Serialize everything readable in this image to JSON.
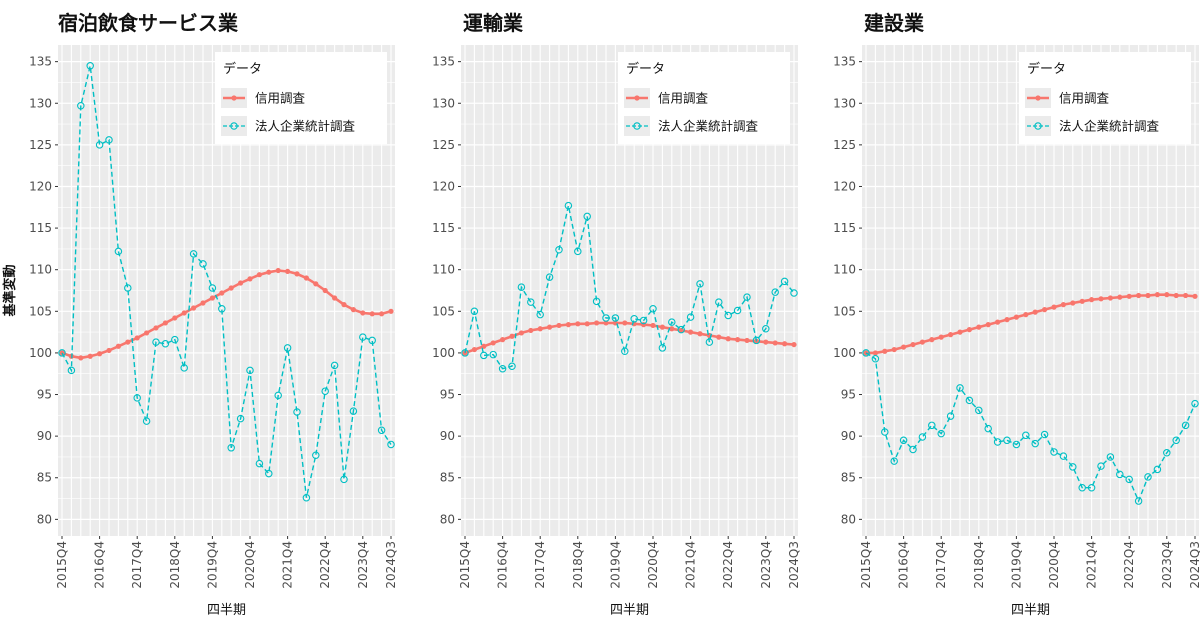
{
  "colors": {
    "credit": "#F8766D",
    "corporate": "#00BFC4",
    "panel_bg": "#EBEBEB",
    "grid": "#FFFFFF"
  },
  "shared": {
    "ylabel": "基準変動",
    "xlabel": "四半期",
    "legend_title": "データ",
    "legend_items": [
      "信用調査",
      "法人企業統計調査"
    ],
    "x_tick_labels": [
      "2015Q4",
      "2016Q4",
      "2017Q4",
      "2018Q4",
      "2019Q4",
      "2020Q4",
      "2021Q4",
      "2022Q4",
      "2023Q4",
      "2024Q3"
    ],
    "y_tick_labels": [
      "80",
      "85",
      "90",
      "95",
      "100",
      "105",
      "110",
      "115",
      "120",
      "125",
      "130",
      "135"
    ]
  },
  "chart_data": [
    {
      "type": "line",
      "title": "宿泊飲食サービス業",
      "xlabel": "四半期",
      "ylabel": "基準変動",
      "legend_title": "データ",
      "legend_position": "top-right",
      "grid": true,
      "ylim": [
        78,
        137
      ],
      "x": [
        "2015Q4",
        "2016Q1",
        "2016Q2",
        "2016Q3",
        "2016Q4",
        "2017Q1",
        "2017Q2",
        "2017Q3",
        "2017Q4",
        "2018Q1",
        "2018Q2",
        "2018Q3",
        "2018Q4",
        "2019Q1",
        "2019Q2",
        "2019Q3",
        "2019Q4",
        "2020Q1",
        "2020Q2",
        "2020Q3",
        "2020Q4",
        "2021Q1",
        "2021Q2",
        "2021Q3",
        "2021Q4",
        "2022Q1",
        "2022Q2",
        "2022Q3",
        "2022Q4",
        "2023Q1",
        "2023Q2",
        "2023Q3",
        "2023Q4",
        "2024Q1",
        "2024Q2",
        "2024Q3"
      ],
      "series": [
        {
          "name": "信用調査",
          "style": "solid-dot",
          "values": [
            100,
            99.6,
            99.4,
            99.6,
            99.9,
            100.3,
            100.8,
            101.3,
            101.8,
            102.4,
            103,
            103.6,
            104.2,
            104.8,
            105.4,
            106,
            106.6,
            107.2,
            107.8,
            108.4,
            108.9,
            109.4,
            109.7,
            109.9,
            109.8,
            109.5,
            109,
            108.3,
            107.5,
            106.6,
            105.8,
            105.2,
            104.8,
            104.7,
            104.7,
            105
          ]
        },
        {
          "name": "法人企業統計調査",
          "style": "dashed-open",
          "values": [
            100,
            97.9,
            129.7,
            134.5,
            125,
            125.6,
            112.2,
            107.8,
            94.6,
            91.8,
            101.3,
            101.1,
            101.6,
            98.2,
            111.9,
            110.7,
            107.8,
            105.3,
            88.6,
            92.1,
            97.9,
            86.7,
            85.5,
            94.9,
            100.6,
            92.9,
            82.6,
            87.7,
            95.4,
            98.5,
            84.8,
            93,
            101.9,
            101.5,
            90.7,
            89
          ]
        }
      ]
    },
    {
      "type": "line",
      "title": "運輸業",
      "xlabel": "四半期",
      "legend_title": "データ",
      "legend_position": "top-right",
      "grid": true,
      "ylim": [
        78,
        137
      ],
      "series": [
        {
          "name": "信用調査",
          "style": "solid-dot",
          "values": [
            100,
            100.4,
            100.8,
            101.2,
            101.6,
            102,
            102.4,
            102.7,
            102.9,
            103.1,
            103.3,
            103.4,
            103.5,
            103.5,
            103.6,
            103.6,
            103.6,
            103.6,
            103.5,
            103.4,
            103.3,
            103.1,
            102.9,
            102.7,
            102.5,
            102.3,
            102.1,
            101.9,
            101.7,
            101.6,
            101.5,
            101.4,
            101.3,
            101.2,
            101.1,
            101.0
          ]
        },
        {
          "name": "法人企業統計調査",
          "style": "dashed-open",
          "values": [
            100,
            105,
            99.7,
            99.8,
            98.1,
            98.4,
            107.9,
            106.1,
            104.6,
            109.1,
            112.4,
            117.7,
            112.2,
            116.4,
            106.2,
            104.2,
            104.2,
            100.2,
            104.1,
            103.9,
            105.3,
            100.6,
            103.7,
            102.8,
            104.3,
            108.3,
            101.3,
            106.1,
            104.5,
            105.1,
            106.7,
            101.5,
            102.9,
            107.3,
            108.6,
            107.2
          ]
        }
      ]
    },
    {
      "type": "line",
      "title": "建設業",
      "xlabel": "四半期",
      "legend_title": "データ",
      "legend_position": "top-right",
      "grid": true,
      "ylim": [
        78,
        137
      ],
      "series": [
        {
          "name": "信用調査",
          "style": "solid-dot",
          "values": [
            100,
            100,
            100.2,
            100.4,
            100.7,
            101,
            101.3,
            101.6,
            101.9,
            102.2,
            102.5,
            102.8,
            103.1,
            103.4,
            103.7,
            104,
            104.3,
            104.6,
            104.9,
            105.2,
            105.5,
            105.8,
            106,
            106.2,
            106.4,
            106.5,
            106.6,
            106.7,
            106.8,
            106.9,
            106.9,
            107,
            107,
            106.9,
            106.9,
            106.8
          ]
        },
        {
          "name": "法人企業統計調査",
          "style": "dashed-open",
          "values": [
            100,
            99.3,
            90.5,
            87,
            89.5,
            88.4,
            89.9,
            91.3,
            90.3,
            92.4,
            95.8,
            94.3,
            93.1,
            90.9,
            89.3,
            89.5,
            89,
            90.1,
            89.1,
            90.2,
            88.1,
            87.6,
            86.3,
            83.8,
            83.8,
            86.4,
            87.5,
            85.4,
            84.8,
            82.2,
            85.1,
            86,
            88,
            89.5,
            91.3,
            93.9
          ]
        }
      ]
    }
  ]
}
